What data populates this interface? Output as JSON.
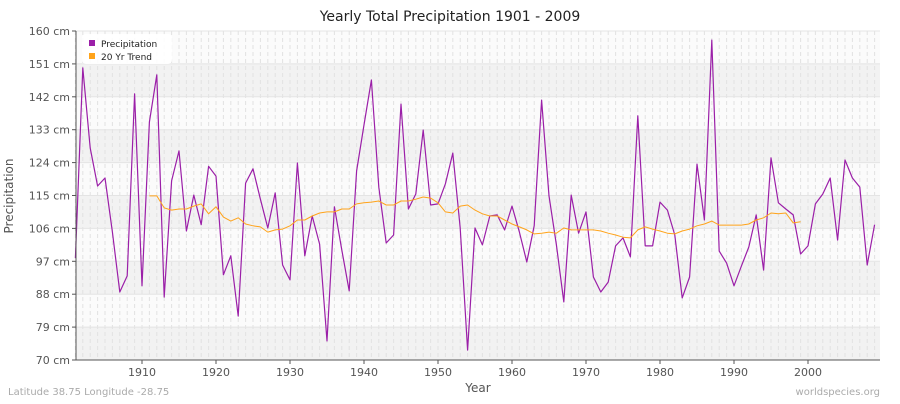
{
  "chart_data": {
    "type": "line",
    "title": "Yearly Total Precipitation 1901 - 2009",
    "xlabel": "Year",
    "ylabel": "Precipitation",
    "ylim": [
      70,
      160
    ],
    "xlim": [
      1901,
      2009
    ],
    "y_ticks": [
      "70 cm",
      "79 cm",
      "88 cm",
      "97 cm",
      "106 cm",
      "115 cm",
      "124 cm",
      "133 cm",
      "142 cm",
      "151 cm",
      "160 cm"
    ],
    "x_ticks": [
      "1910",
      "1920",
      "1930",
      "1940",
      "1950",
      "1960",
      "1970",
      "1980",
      "1990",
      "2000"
    ],
    "grid": true,
    "legend_placement": "top-left",
    "series": [
      {
        "name": "Precipitation",
        "color": "#9b1fa8",
        "x_start": 1901,
        "values": [
          97.9,
          149.9,
          128,
          117.6,
          119.8,
          105,
          88.6,
          93,
          142.8,
          90.3,
          135.1,
          148,
          87.2,
          119,
          127.2,
          105.3,
          115.1,
          107,
          123,
          120.3,
          93.3,
          98.5,
          82,
          118.4,
          122.3,
          114,
          106.1,
          115.7,
          96,
          91.9,
          123.9,
          98.5,
          109.4,
          101.7,
          75.2,
          111.9,
          100.1,
          88.9,
          121.7,
          134.3,
          146.6,
          117.3,
          102,
          104.2,
          140,
          111.3,
          115.4,
          132.9,
          112.4,
          112.7,
          118.2,
          126.6,
          106.1,
          72.7,
          106.1,
          101.5,
          109.4,
          109.7,
          105.6,
          112.1,
          105,
          96.8,
          106.7,
          141.1,
          114.9,
          101.5,
          85.9,
          115.1,
          104.7,
          110.5,
          92.7,
          88.6,
          91.3,
          101.2,
          103.4,
          98.2,
          136.8,
          101.2,
          101.2,
          113.2,
          111,
          104.2,
          87,
          92.7,
          123.6,
          108.3,
          157.5,
          99.8,
          96.5,
          90.3,
          95.7,
          100.9,
          109.7,
          94.6,
          125.3,
          113,
          111.3,
          109.7,
          99,
          101.2,
          112.7,
          115.4,
          119.8,
          102.8,
          124.7,
          119.8,
          117.3,
          96,
          107
        ]
      },
      {
        "name": "20 Yr Trend",
        "color": "#ffa31a",
        "x_start": 1911,
        "values": [
          114.9,
          114.9,
          111.6,
          111,
          111.3,
          111.3,
          112.1,
          112.7,
          110,
          111.9,
          109.1,
          108,
          108.9,
          107.2,
          106.7,
          106.4,
          105,
          105.6,
          105.8,
          106.7,
          108.3,
          108.3,
          109.4,
          110.2,
          110.5,
          110.5,
          111.3,
          111.3,
          112.7,
          113,
          113.2,
          113.5,
          112.4,
          112.4,
          113.5,
          113.5,
          114,
          114.6,
          114.3,
          113,
          110.5,
          110.2,
          112.1,
          112.4,
          111,
          110,
          109.4,
          109.4,
          108.3,
          107.2,
          106.4,
          105.6,
          104.5,
          104.7,
          105,
          104.7,
          106.1,
          105.6,
          105.6,
          105.6,
          105.6,
          105.3,
          104.7,
          104.2,
          103.6,
          103.4,
          105.6,
          106.4,
          105.8,
          105.3,
          104.7,
          104.5,
          105.3,
          105.8,
          106.7,
          107.2,
          108,
          106.9,
          106.9,
          106.9,
          106.9,
          107.2,
          108.3,
          108.9,
          110.2,
          110,
          110.2,
          107.5,
          107.8
        ]
      }
    ]
  },
  "footer": {
    "location": "Latitude 38.75 Longitude -28.75",
    "source": "worldspecies.org"
  }
}
